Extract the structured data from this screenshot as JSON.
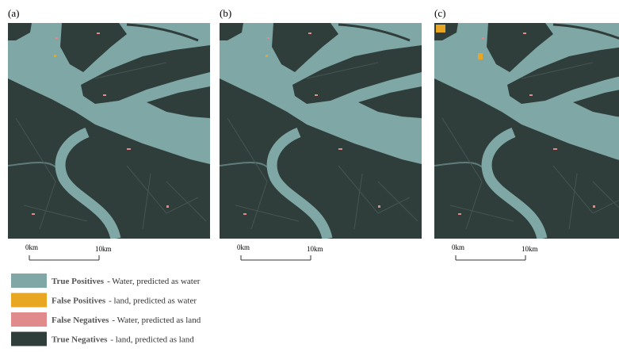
{
  "panels": [
    {
      "label": "(a)",
      "scale_start": "0km",
      "scale_end": "10km"
    },
    {
      "label": "(b)",
      "scale_start": "0km",
      "scale_end": "10km"
    },
    {
      "label": "(c)",
      "scale_start": "0km",
      "scale_end": "10km"
    }
  ],
  "legend": [
    {
      "term": "True Positives",
      "description": "- Water, predicted as water",
      "color": "#7fa7a6"
    },
    {
      "term": "False Positives",
      "description": "- land, predicted as water",
      "color": "#e8a623"
    },
    {
      "term": "False Negatives",
      "description": "- Water, predicted as land",
      "color": "#e08a8c"
    },
    {
      "term": "True Negatives",
      "description": "- land, predicted as land",
      "color": "#2f3e3b"
    }
  ]
}
